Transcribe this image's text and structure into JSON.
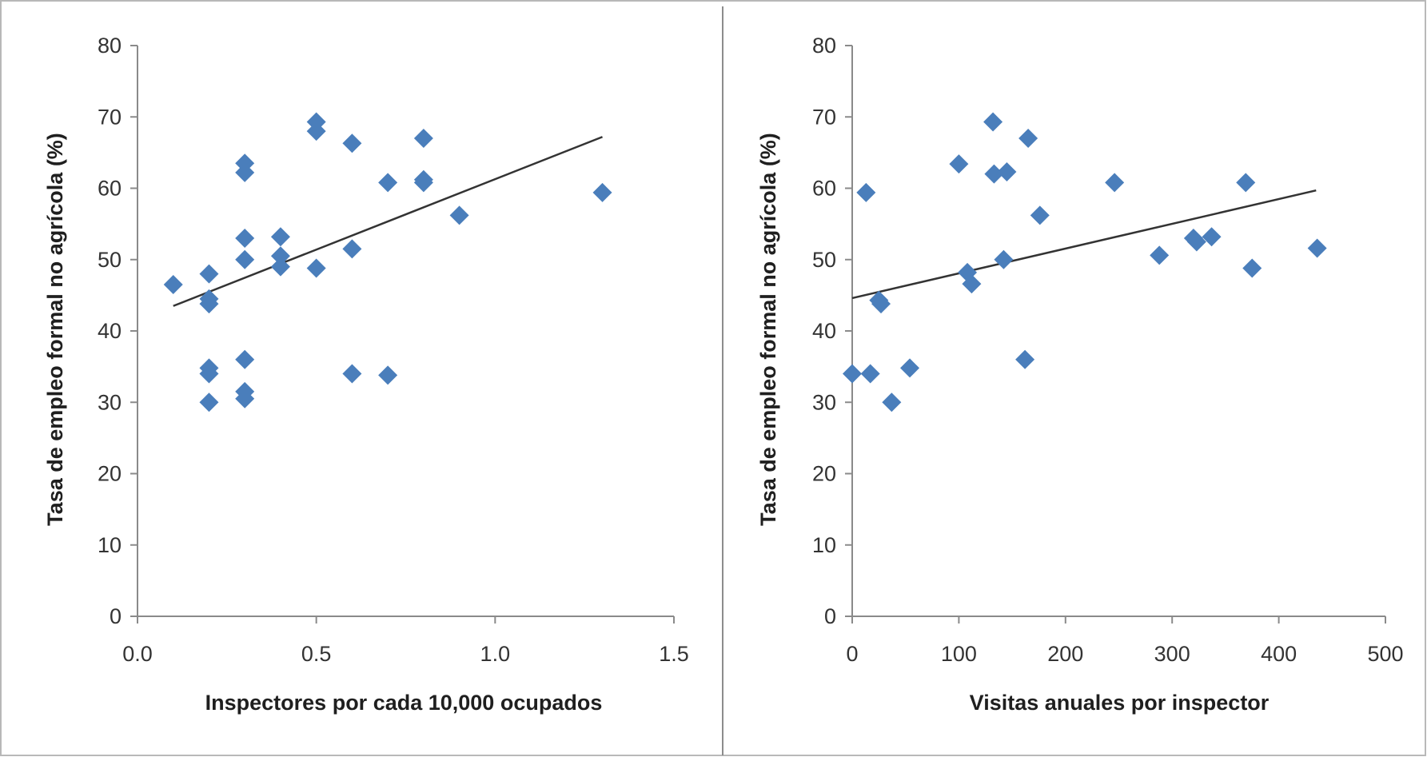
{
  "chart_data": [
    {
      "type": "scatter",
      "xlabel": "Inspectores por cada  10,000 ocupados",
      "ylabel": "Tasa de empleo formal no agrícola  (%)",
      "xlim": [
        0.0,
        1.5
      ],
      "ylim": [
        0,
        80
      ],
      "xticks": [
        "0.0",
        "0.5",
        "1.0",
        "1.5"
      ],
      "yticks": [
        "0",
        "10",
        "20",
        "30",
        "40",
        "50",
        "60",
        "70",
        "80"
      ],
      "grid": false,
      "marker_color": "#4a7ebb",
      "series": [
        {
          "points": [
            [
              0.1,
              46.5
            ],
            [
              0.2,
              48
            ],
            [
              0.2,
              44.5
            ],
            [
              0.2,
              43.8
            ],
            [
              0.2,
              34.8
            ],
            [
              0.2,
              34
            ],
            [
              0.2,
              30
            ],
            [
              0.3,
              63.5
            ],
            [
              0.3,
              62.2
            ],
            [
              0.3,
              53
            ],
            [
              0.3,
              50
            ],
            [
              0.3,
              36
            ],
            [
              0.3,
              31.5
            ],
            [
              0.3,
              30.5
            ],
            [
              0.4,
              53.2
            ],
            [
              0.4,
              50.5
            ],
            [
              0.4,
              49
            ],
            [
              0.5,
              69.3
            ],
            [
              0.5,
              68
            ],
            [
              0.5,
              48.8
            ],
            [
              0.6,
              66.3
            ],
            [
              0.6,
              51.5
            ],
            [
              0.6,
              34
            ],
            [
              0.7,
              60.8
            ],
            [
              0.7,
              33.8
            ],
            [
              0.8,
              67
            ],
            [
              0.8,
              61.2
            ],
            [
              0.8,
              60.8
            ],
            [
              0.9,
              56.2
            ],
            [
              1.3,
              59.4
            ]
          ]
        }
      ],
      "trendline": {
        "x": [
          0.1,
          1.3
        ],
        "y": [
          43.5,
          67.2
        ]
      }
    },
    {
      "type": "scatter",
      "xlabel": "Visitas anuales  por inspector",
      "ylabel": "Tasa de empleo formal no agrícola  (%)",
      "xlim": [
        0,
        500
      ],
      "ylim": [
        0,
        80
      ],
      "xticks": [
        "0",
        "100",
        "200",
        "300",
        "400",
        "500"
      ],
      "yticks": [
        "0",
        "10",
        "20",
        "30",
        "40",
        "50",
        "60",
        "70",
        "80"
      ],
      "grid": false,
      "marker_color": "#4a7ebb",
      "series": [
        {
          "points": [
            [
              0,
              34
            ],
            [
              13,
              59.4
            ],
            [
              17,
              34
            ],
            [
              25,
              44.3
            ],
            [
              27,
              43.8
            ],
            [
              37,
              30
            ],
            [
              54,
              34.8
            ],
            [
              100,
              63.4
            ],
            [
              108,
              48.2
            ],
            [
              112,
              46.6
            ],
            [
              132,
              69.3
            ],
            [
              133,
              62
            ],
            [
              142,
              50
            ],
            [
              145,
              62.3
            ],
            [
              162,
              36
            ],
            [
              165,
              67
            ],
            [
              176,
              56.2
            ],
            [
              246,
              60.8
            ],
            [
              288,
              50.6
            ],
            [
              320,
              53
            ],
            [
              323,
              52.5
            ],
            [
              337,
              53.2
            ],
            [
              369,
              60.8
            ],
            [
              375,
              48.8
            ],
            [
              436,
              51.6
            ]
          ]
        }
      ],
      "trendline": {
        "x": [
          0,
          435
        ],
        "y": [
          44.6,
          59.7
        ]
      }
    }
  ]
}
